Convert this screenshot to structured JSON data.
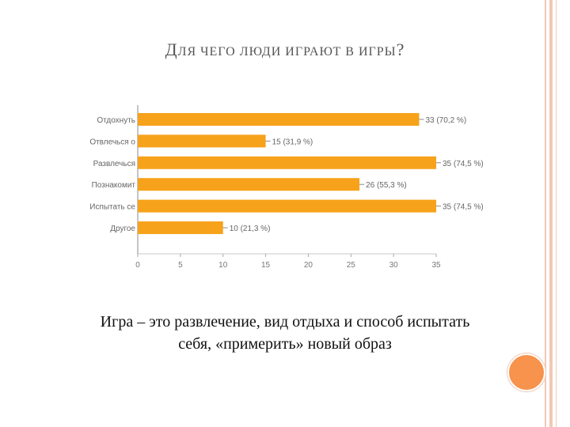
{
  "slide": {
    "title_first": "Д",
    "title_rest": "ЛЯ ЧЕГО ЛЮДИ ИГРАЮТ В ИГРЫ",
    "title_end": "?",
    "caption_line1": "Игра – это развлечение, вид отдыха и способ испытать",
    "caption_line2": "себя, «примерить» новый образ"
  },
  "colors": {
    "bar": "#f7a21b",
    "circle": "#f7934c",
    "border": "#f2c8b4"
  },
  "chart_data": {
    "type": "bar",
    "orientation": "horizontal",
    "categories": [
      "Отдохнуть",
      "Отвлечься о",
      "Развлечься",
      "Познакомит",
      "Испытать се",
      "Другое"
    ],
    "values": [
      33,
      15,
      35,
      26,
      35,
      10
    ],
    "data_labels": [
      "33 (70,2 %)",
      "15 (31,9 %)",
      "35 (74,5 %)",
      "26 (55,3 %)",
      "35 (74,5 %)",
      "10 (21,3 %)"
    ],
    "xticks": [
      0,
      5,
      10,
      15,
      20,
      25,
      30,
      35
    ],
    "xlim": [
      0,
      35
    ],
    "grid": false,
    "title": "",
    "xlabel": "",
    "ylabel": ""
  }
}
